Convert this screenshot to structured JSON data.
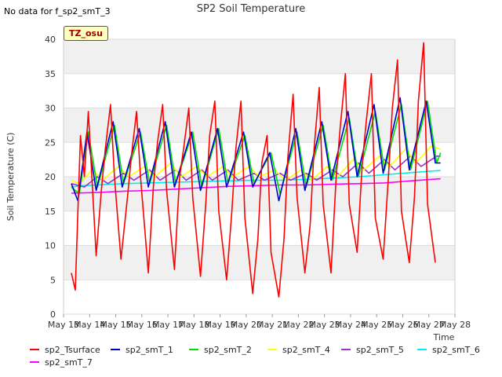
{
  "no_data_note": "No data for f_sp2_smT_3",
  "badge": "TZ_osu",
  "chart_data": {
    "type": "line",
    "title": "SP2 Soil Temperature",
    "xlabel": "Time",
    "ylabel": "Soil Temperature (C)",
    "ylim": [
      0,
      40
    ],
    "yticks": [
      0,
      5,
      10,
      15,
      20,
      25,
      30,
      35,
      40
    ],
    "xlim": [
      13,
      28
    ],
    "xticks": [
      13,
      14,
      15,
      16,
      17,
      18,
      19,
      20,
      21,
      22,
      23,
      24,
      25,
      26,
      27,
      28
    ],
    "xtick_labels": [
      "May 13",
      "May 14",
      "May 15",
      "May 16",
      "May 17",
      "May 18",
      "May 19",
      "May 20",
      "May 21",
      "May 22",
      "May 23",
      "May 24",
      "May 25",
      "May 26",
      "May 27",
      "May 28"
    ],
    "grid": true,
    "series": [
      {
        "name": "sp2_Tsurface",
        "color": "#ff0000",
        "x": [
          13.3,
          13.45,
          13.55,
          13.65,
          13.8,
          13.95,
          14.25,
          14.45,
          14.6,
          14.8,
          14.95,
          15.2,
          15.45,
          15.6,
          15.8,
          15.95,
          16.25,
          16.45,
          16.6,
          16.8,
          16.95,
          17.25,
          17.45,
          17.6,
          17.8,
          17.95,
          18.25,
          18.45,
          18.6,
          18.8,
          18.95,
          19.25,
          19.45,
          19.6,
          19.8,
          19.95,
          20.25,
          20.45,
          20.6,
          20.8,
          20.95,
          21.25,
          21.45,
          21.6,
          21.8,
          21.95,
          22.25,
          22.45,
          22.6,
          22.8,
          22.95,
          23.25,
          23.45,
          23.6,
          23.8,
          23.95,
          24.25,
          24.45,
          24.6,
          24.8,
          24.95,
          25.25,
          25.45,
          25.6,
          25.8,
          25.95,
          26.25,
          26.45,
          26.6,
          26.8,
          26.95,
          27.25,
          27.45
        ],
        "y": [
          6,
          3.5,
          15,
          26,
          20,
          29.5,
          8.5,
          18,
          24,
          30.5,
          20,
          8,
          17,
          23,
          29.5,
          20,
          6,
          19,
          25,
          30.5,
          18,
          6.5,
          20,
          24,
          30,
          17,
          5.5,
          16,
          26,
          31,
          15,
          5,
          15,
          24,
          31,
          14,
          3,
          11,
          22,
          26,
          9,
          2.5,
          11,
          23,
          32,
          17,
          6,
          13,
          24,
          33,
          16,
          6,
          20,
          27,
          35,
          16,
          9,
          22,
          28,
          35,
          14,
          8,
          20,
          30,
          37,
          15,
          7.5,
          17,
          31,
          39.5,
          16,
          7.5,
          null
        ]
      },
      {
        "name": "sp2_smT_1",
        "color": "#0000cc",
        "x": [
          13.3,
          13.55,
          13.9,
          14.25,
          14.9,
          15.25,
          15.9,
          16.25,
          16.9,
          17.25,
          17.9,
          18.25,
          18.9,
          19.25,
          19.9,
          20.25,
          20.9,
          21.25,
          21.9,
          22.25,
          22.9,
          23.25,
          23.9,
          24.25,
          24.9,
          25.25,
          25.9,
          26.25,
          26.9,
          27.25,
          27.45
        ],
        "y": [
          19,
          16.5,
          26.5,
          18,
          28,
          18.5,
          27,
          18.5,
          28,
          18.5,
          26.5,
          18,
          27,
          18.5,
          26.5,
          18.5,
          23.5,
          16.5,
          27,
          18,
          28,
          19.5,
          29.5,
          20,
          30.5,
          20.5,
          31.5,
          21,
          31,
          22,
          22
        ]
      },
      {
        "name": "sp2_smT_2",
        "color": "#00dd00",
        "x": [
          13.3,
          13.6,
          13.95,
          14.3,
          14.95,
          15.3,
          15.95,
          16.3,
          16.95,
          17.3,
          17.95,
          18.3,
          18.95,
          19.3,
          19.95,
          20.3,
          20.95,
          21.3,
          21.95,
          22.3,
          22.95,
          23.3,
          23.95,
          24.3,
          24.95,
          25.3,
          25.95,
          26.3,
          26.95,
          27.3,
          27.45
        ],
        "y": [
          18.5,
          17.5,
          26.5,
          18.5,
          27.5,
          19,
          26.5,
          19,
          27.5,
          19,
          26.5,
          18.5,
          27,
          19,
          26,
          19,
          23.5,
          17.5,
          26.5,
          18.5,
          27.5,
          19.5,
          28.5,
          20,
          29.5,
          21,
          30.5,
          21,
          31,
          22,
          23.5
        ]
      },
      {
        "name": "sp2_smT_4",
        "color": "#ffff00",
        "x": [
          13.3,
          13.6,
          14.1,
          14.5,
          15.1,
          15.5,
          16.1,
          16.5,
          17.1,
          17.5,
          18.1,
          18.5,
          19.1,
          19.5,
          20.1,
          20.5,
          21.1,
          21.5,
          22.1,
          22.5,
          23.1,
          23.5,
          24.1,
          24.5,
          25.1,
          25.5,
          26.1,
          26.5,
          27.1,
          27.45
        ],
        "y": [
          19.5,
          19,
          21,
          19.5,
          21.5,
          20,
          21.5,
          20,
          22,
          20,
          21.5,
          20,
          21.5,
          20,
          21.5,
          20,
          21,
          19.5,
          21,
          19.5,
          21.5,
          20,
          22.5,
          21,
          23,
          21.5,
          24,
          22,
          24.5,
          24
        ]
      },
      {
        "name": "sp2_smT_5",
        "color": "#9933cc",
        "x": [
          13.3,
          13.8,
          14.3,
          14.7,
          15.3,
          15.7,
          16.3,
          16.7,
          17.3,
          17.7,
          18.3,
          18.7,
          19.3,
          19.7,
          20.3,
          20.7,
          21.3,
          21.7,
          22.3,
          22.7,
          23.3,
          23.7,
          24.3,
          24.7,
          25.3,
          25.7,
          26.3,
          26.7,
          27.3,
          27.45
        ],
        "y": [
          19,
          18.5,
          20,
          19,
          20.5,
          19.5,
          21,
          19.5,
          21,
          19.5,
          21,
          19.5,
          21,
          19.5,
          20.5,
          19.5,
          20.5,
          19.5,
          20.5,
          19.5,
          21,
          20,
          22,
          20.5,
          22.5,
          21,
          23,
          21.5,
          23,
          23
        ]
      },
      {
        "name": "sp2_smT_6",
        "color": "#00eeee",
        "x": [
          13.3,
          13.7,
          14.3,
          15.3,
          16.3,
          17.3,
          18.3,
          19.3,
          20.3,
          21.3,
          22.3,
          23.3,
          24.3,
          25.3,
          26.3,
          27.45
        ],
        "y": [
          18.5,
          18.7,
          18.8,
          19,
          19.1,
          19.2,
          19.3,
          19.4,
          19.5,
          19.5,
          19.6,
          19.8,
          20,
          20.3,
          20.6,
          20.9
        ]
      },
      {
        "name": "sp2_smT_7",
        "color": "#ff00ff",
        "x": [
          13.3,
          14.3,
          15.3,
          16.3,
          17.3,
          18.3,
          19.3,
          20.3,
          21.3,
          22.3,
          23.3,
          24.3,
          25.3,
          26.3,
          27.45
        ],
        "y": [
          17.6,
          17.7,
          17.9,
          18.0,
          18.2,
          18.4,
          18.6,
          18.7,
          18.8,
          18.8,
          18.9,
          19.0,
          19.1,
          19.4,
          19.7
        ]
      }
    ]
  }
}
